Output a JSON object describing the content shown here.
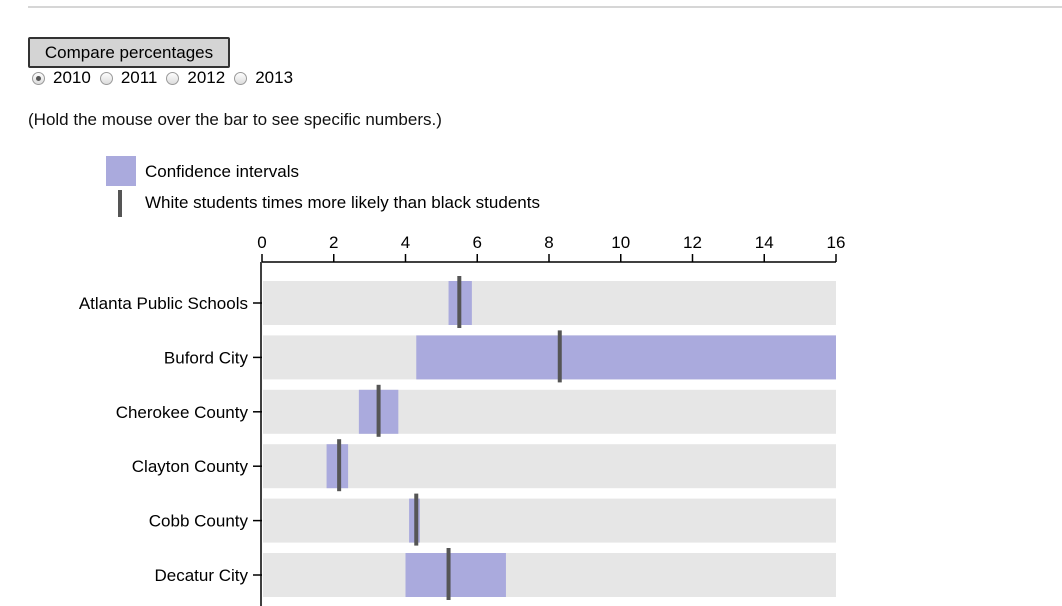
{
  "controls": {
    "compare_button": "Compare percentages",
    "years": [
      {
        "label": "2010",
        "checked": true
      },
      {
        "label": "2011",
        "checked": false
      },
      {
        "label": "2012",
        "checked": false
      },
      {
        "label": "2013",
        "checked": false
      }
    ]
  },
  "hint": "(Hold the mouse over the bar to see specific numbers.)",
  "legend": {
    "ci_label": "Confidence intervals",
    "ratio_label": "White students times more likely than black students"
  },
  "colors": {
    "ci": "#aaaadd",
    "track": "#e6e6e6",
    "marker": "#555555"
  },
  "chart_data": {
    "type": "bar",
    "orientation": "horizontal",
    "xlim": [
      0,
      16
    ],
    "xticks": [
      "0",
      "2",
      "4",
      "6",
      "8",
      "10",
      "12",
      "14",
      "16"
    ],
    "axis_position": "top",
    "categories": [
      "Atlanta Public Schools",
      "Buford City",
      "Cherokee County",
      "Clayton County",
      "Cobb County",
      "Decatur City"
    ],
    "series": [
      {
        "name": "White students times more likely than black students",
        "values": [
          5.5,
          8.3,
          3.25,
          2.15,
          4.3,
          5.2
        ]
      },
      {
        "name": "Confidence intervals",
        "low": [
          5.2,
          4.3,
          2.7,
          1.8,
          4.1,
          4.0
        ],
        "high": [
          5.85,
          16.0,
          3.8,
          2.4,
          4.4,
          6.8
        ]
      }
    ]
  }
}
